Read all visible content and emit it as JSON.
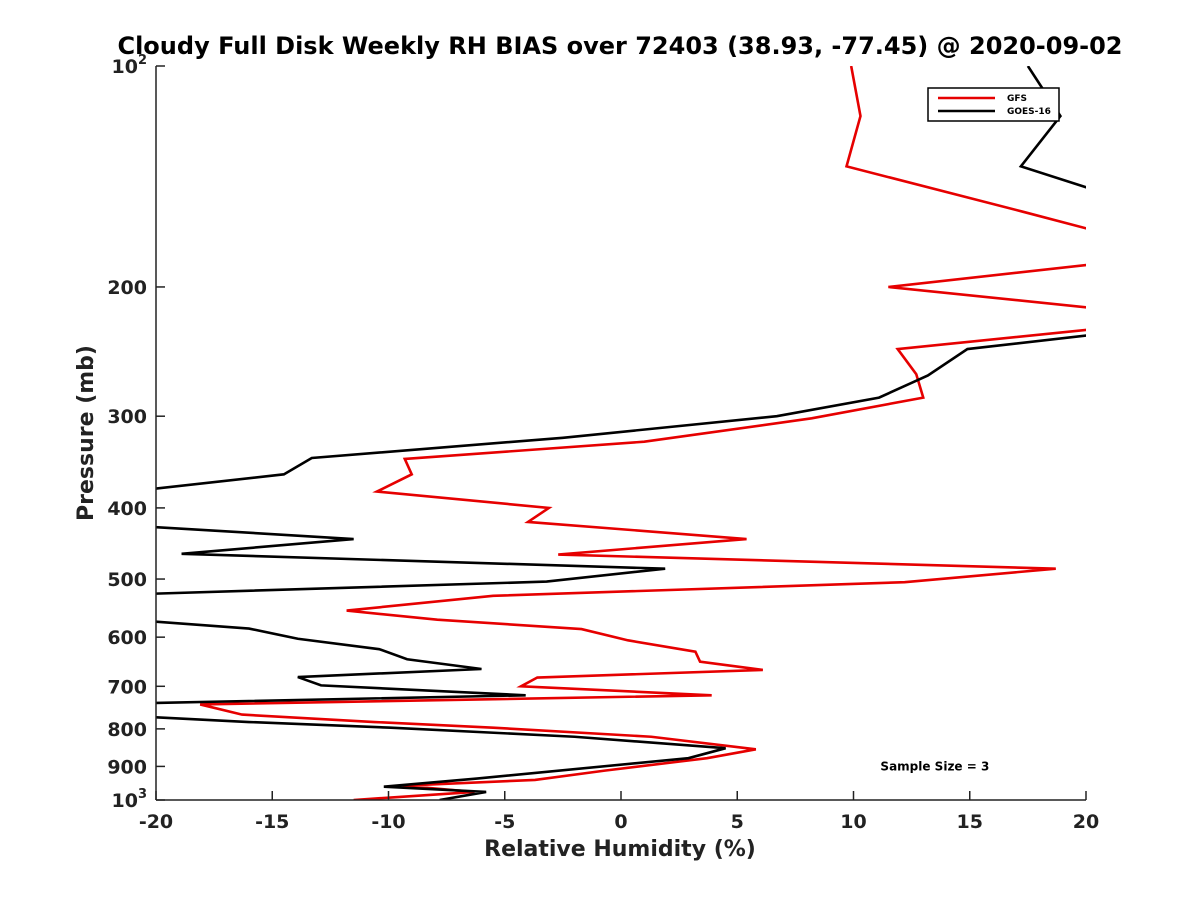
{
  "chart_data": {
    "type": "line",
    "title": "Cloudy Full Disk Weekly RH BIAS over 72403 (38.93, -77.45) @ 2020-09-02",
    "xlabel": "Relative Humidity (%)",
    "ylabel": "Pressure (mb)",
    "xlim": [
      -20,
      20
    ],
    "ylim": [
      1000,
      100
    ],
    "yscale": "log",
    "y_reversed": true,
    "grid": false,
    "legend_position": "top-right",
    "x_ticks": [
      -20,
      -15,
      -10,
      -5,
      0,
      5,
      10,
      15,
      20
    ],
    "x_tick_labels": [
      "-20",
      "-15",
      "-10",
      "-5",
      "0",
      "5",
      "10",
      "15",
      "20"
    ],
    "y_ticks": [
      {
        "value": 100,
        "label": "10",
        "sup": "2"
      },
      {
        "value": 200,
        "label": "200",
        "sup": ""
      },
      {
        "value": 300,
        "label": "300",
        "sup": ""
      },
      {
        "value": 400,
        "label": "400",
        "sup": ""
      },
      {
        "value": 500,
        "label": "500",
        "sup": ""
      },
      {
        "value": 600,
        "label": "600",
        "sup": ""
      },
      {
        "value": 700,
        "label": "700",
        "sup": ""
      },
      {
        "value": 800,
        "label": "800",
        "sup": ""
      },
      {
        "value": 900,
        "label": "900",
        "sup": ""
      },
      {
        "value": 1000,
        "label": "10",
        "sup": "3"
      }
    ],
    "series": [
      {
        "name": "GFS",
        "color": "#e60000",
        "points": [
          {
            "x": 9.9,
            "y": 100
          },
          {
            "x": 10.3,
            "y": 117
          },
          {
            "x": 9.7,
            "y": 137
          },
          {
            "x": 17.3,
            "y": 158
          },
          {
            "x": 20.5,
            "y": 168
          },
          {
            "x": 20.5,
            "y": 186
          },
          {
            "x": 11.5,
            "y": 200
          },
          {
            "x": 20.5,
            "y": 214
          },
          {
            "x": 20.5,
            "y": 228
          },
          {
            "x": 11.9,
            "y": 243
          },
          {
            "x": 12.7,
            "y": 263
          },
          {
            "x": 13.0,
            "y": 283
          },
          {
            "x": 8.2,
            "y": 302
          },
          {
            "x": 1.0,
            "y": 325
          },
          {
            "x": -9.3,
            "y": 343
          },
          {
            "x": -9.0,
            "y": 360
          },
          {
            "x": -10.5,
            "y": 380
          },
          {
            "x": -3.1,
            "y": 400
          },
          {
            "x": -4.0,
            "y": 418
          },
          {
            "x": 5.4,
            "y": 441
          },
          {
            "x": -2.7,
            "y": 463
          },
          {
            "x": 18.7,
            "y": 484
          },
          {
            "x": 12.2,
            "y": 505
          },
          {
            "x": -5.5,
            "y": 527
          },
          {
            "x": -11.8,
            "y": 552
          },
          {
            "x": -7.9,
            "y": 568
          },
          {
            "x": -1.7,
            "y": 585
          },
          {
            "x": 0.3,
            "y": 606
          },
          {
            "x": 3.2,
            "y": 628
          },
          {
            "x": 3.4,
            "y": 648
          },
          {
            "x": 6.1,
            "y": 665
          },
          {
            "x": -3.6,
            "y": 681
          },
          {
            "x": -4.3,
            "y": 700
          },
          {
            "x": 3.9,
            "y": 720
          },
          {
            "x": -18.1,
            "y": 741
          },
          {
            "x": -16.3,
            "y": 765
          },
          {
            "x": -10.6,
            "y": 783
          },
          {
            "x": -5.5,
            "y": 797
          },
          {
            "x": 1.3,
            "y": 820
          },
          {
            "x": 5.8,
            "y": 853
          },
          {
            "x": 3.7,
            "y": 877
          },
          {
            "x": -0.7,
            "y": 912
          },
          {
            "x": -3.7,
            "y": 939
          },
          {
            "x": -9.4,
            "y": 956
          },
          {
            "x": -6.3,
            "y": 975
          },
          {
            "x": -11.5,
            "y": 1000
          }
        ]
      },
      {
        "name": "GOES-16",
        "color": "#000000",
        "points": [
          {
            "x": 17.5,
            "y": 100
          },
          {
            "x": 18.9,
            "y": 117
          },
          {
            "x": 17.2,
            "y": 137
          },
          {
            "x": 20.5,
            "y": 148
          },
          {
            "x": 20.5,
            "y": 232
          },
          {
            "x": 14.9,
            "y": 243
          },
          {
            "x": 13.2,
            "y": 264
          },
          {
            "x": 11.1,
            "y": 283
          },
          {
            "x": 6.7,
            "y": 300
          },
          {
            "x": -2.5,
            "y": 321
          },
          {
            "x": -13.3,
            "y": 342
          },
          {
            "x": -14.5,
            "y": 360
          },
          {
            "x": -20.5,
            "y": 378
          },
          {
            "x": -20.5,
            "y": 424
          },
          {
            "x": -11.5,
            "y": 441
          },
          {
            "x": -18.9,
            "y": 462
          },
          {
            "x": 1.9,
            "y": 484
          },
          {
            "x": -3.2,
            "y": 504
          },
          {
            "x": -20.5,
            "y": 524
          },
          {
            "x": -20.5,
            "y": 570
          },
          {
            "x": -16.0,
            "y": 584
          },
          {
            "x": -13.9,
            "y": 603
          },
          {
            "x": -10.4,
            "y": 623
          },
          {
            "x": -9.2,
            "y": 643
          },
          {
            "x": -6.0,
            "y": 663
          },
          {
            "x": -13.9,
            "y": 680
          },
          {
            "x": -12.9,
            "y": 698
          },
          {
            "x": -4.1,
            "y": 720
          },
          {
            "x": -20.5,
            "y": 738
          },
          {
            "x": -20.5,
            "y": 770
          },
          {
            "x": -16.0,
            "y": 783
          },
          {
            "x": -9.9,
            "y": 797
          },
          {
            "x": -2.0,
            "y": 820
          },
          {
            "x": 4.5,
            "y": 850
          },
          {
            "x": 2.9,
            "y": 877
          },
          {
            "x": -6.2,
            "y": 935
          },
          {
            "x": -10.2,
            "y": 959
          },
          {
            "x": -5.8,
            "y": 975
          },
          {
            "x": -7.8,
            "y": 1000
          }
        ]
      }
    ],
    "annotations": [
      {
        "text": "Sample Size = 3",
        "x": 13.5,
        "y": 900
      }
    ]
  }
}
